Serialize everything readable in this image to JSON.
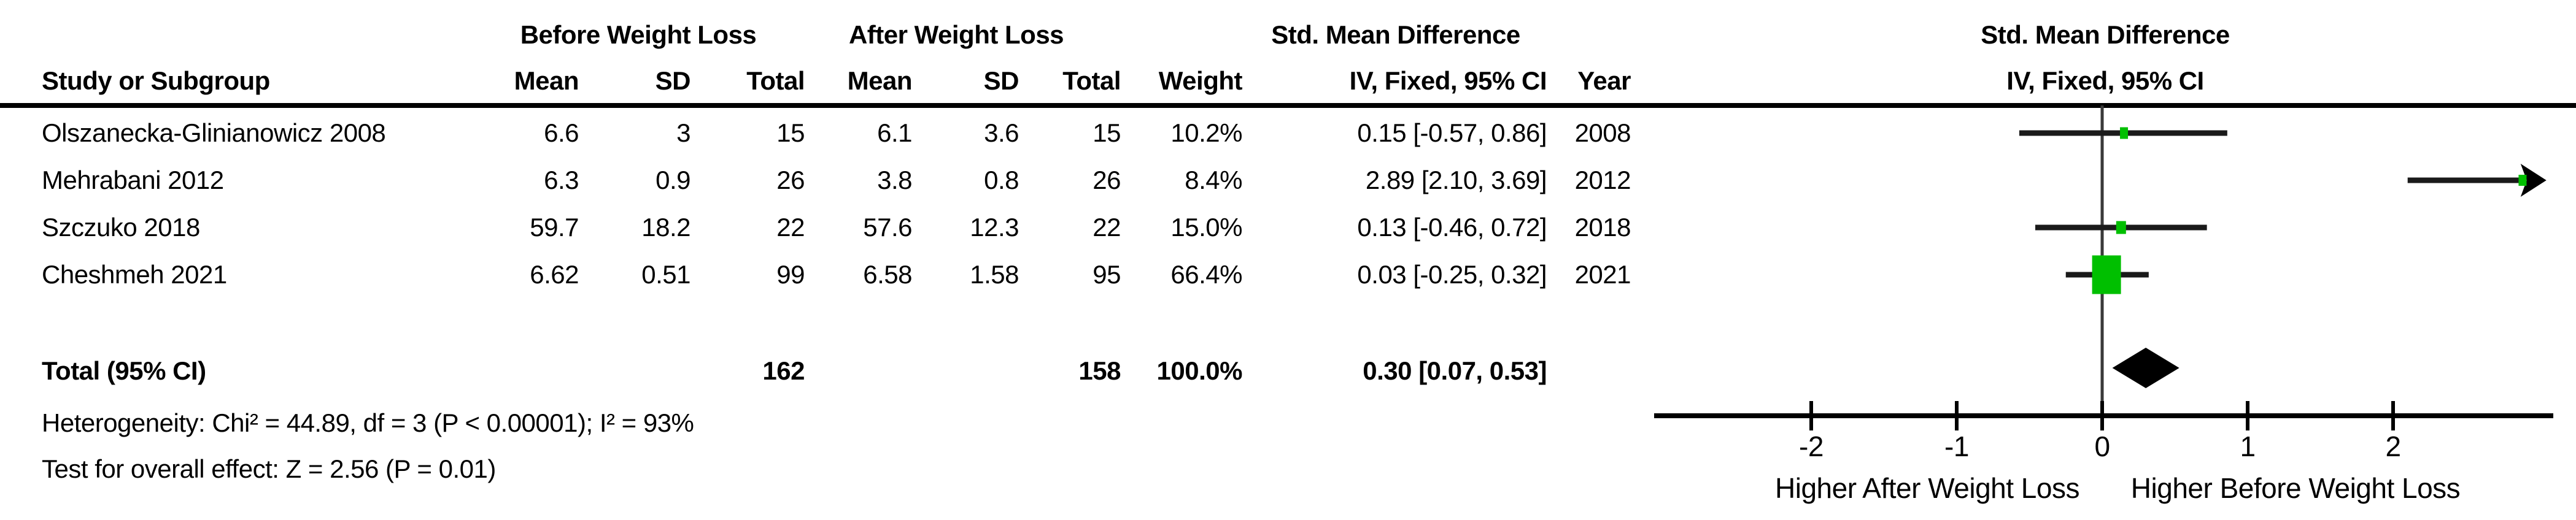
{
  "table": {
    "group_headers": {
      "before": "Before Weight Loss",
      "after": "After Weight Loss",
      "smd": "Std. Mean Difference"
    },
    "columns": {
      "study": "Study or Subgroup",
      "mean": "Mean",
      "sd": "SD",
      "total": "Total",
      "weight": "Weight",
      "ci": "IV, Fixed, 95% CI",
      "year": "Year"
    }
  },
  "chart_data": {
    "type": "forest",
    "effect_measure": "Std. Mean Difference",
    "method_label": "IV, Fixed, 95% CI",
    "axis": {
      "min": -3.05,
      "max": 3.02,
      "ticks": [
        -2,
        -1,
        0,
        1,
        2
      ],
      "tick_labels": [
        "-2",
        "-1",
        "0",
        "1",
        "2"
      ],
      "left_label": "Higher After Weight Loss",
      "right_label": "Higher Before Weight Loss"
    },
    "studies": [
      {
        "name": "Olszanecka-Glinianowicz 2008",
        "mean_before": "6.6",
        "sd_before": "3",
        "total_before": "15",
        "mean_after": "6.1",
        "sd_after": "3.6",
        "total_after": "15",
        "weight": "10.2%",
        "weight_pct": 10.2,
        "est": 0.15,
        "lo": -0.57,
        "hi": 0.86,
        "ci_text": "0.15 [-0.57, 0.86]",
        "year": "2008"
      },
      {
        "name": "Mehrabani 2012",
        "mean_before": "6.3",
        "sd_before": "0.9",
        "total_before": "26",
        "mean_after": "3.8",
        "sd_after": "0.8",
        "total_after": "26",
        "weight": "8.4%",
        "weight_pct": 8.4,
        "est": 2.89,
        "lo": 2.1,
        "hi": 3.69,
        "ci_text": "2.89 [2.10, 3.69]",
        "year": "2012"
      },
      {
        "name": "Szczuko 2018",
        "mean_before": "59.7",
        "sd_before": "18.2",
        "total_before": "22",
        "mean_after": "57.6",
        "sd_after": "12.3",
        "total_after": "22",
        "weight": "15.0%",
        "weight_pct": 15.0,
        "est": 0.13,
        "lo": -0.46,
        "hi": 0.72,
        "ci_text": "0.13 [-0.46, 0.72]",
        "year": "2018"
      },
      {
        "name": "Cheshmeh 2021",
        "mean_before": "6.62",
        "sd_before": "0.51",
        "total_before": "99",
        "mean_after": "6.58",
        "sd_after": "1.58",
        "total_after": "95",
        "weight": "66.4%",
        "weight_pct": 66.4,
        "est": 0.03,
        "lo": -0.25,
        "hi": 0.32,
        "ci_text": "0.03 [-0.25, 0.32]",
        "year": "2021"
      }
    ],
    "total": {
      "label": "Total (95% CI)",
      "total_before": "162",
      "total_after": "158",
      "weight": "100.0%",
      "est": 0.3,
      "lo": 0.07,
      "hi": 0.53,
      "ci_text": "0.30 [0.07, 0.53]"
    },
    "marker_color": "#00bf00",
    "line_color": "#1a1a1a"
  },
  "footer": {
    "heterogeneity": "Heterogeneity: Chi² = 44.89, df = 3 (P < 0.00001); I² = 93%",
    "overall_effect": "Test for overall effect: Z = 2.56 (P = 0.01)"
  }
}
